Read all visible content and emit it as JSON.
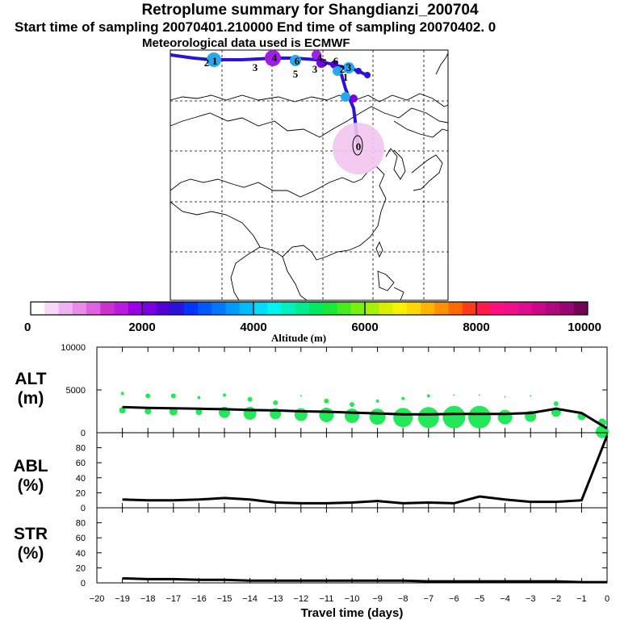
{
  "titles": {
    "main": "Retroplume summary for Shangdianzi_200704",
    "sampling": "Start time of sampling 20070401.210000     End time of sampling 20070402.     0",
    "met": "Meteorological data used is ECMWF"
  },
  "colorbar": {
    "tick_labels": [
      "0",
      "2000",
      "4000",
      "6000",
      "8000",
      "10000"
    ],
    "label": "Altitude (m)",
    "colors": [
      "#ffffff",
      "#f7d9f7",
      "#efb3ef",
      "#e88ce8",
      "#df62df",
      "#cc33cc",
      "#b91cdd",
      "#9b00e8",
      "#7a00e0",
      "#5200d4",
      "#2a14d8",
      "#0036ff",
      "#0058ff",
      "#0078ff",
      "#009bff",
      "#00bcff",
      "#00ddff",
      "#00f5f0",
      "#00f0c0",
      "#00ec90",
      "#00e860",
      "#18e838",
      "#48ec20",
      "#78f010",
      "#a8f000",
      "#d8f000",
      "#f8f000",
      "#ffd800",
      "#ffb400",
      "#ff9000",
      "#ff6a00",
      "#ff3a1a",
      "#ff1a4a",
      "#ff1080",
      "#f0108a",
      "#e00c90",
      "#c80a8a",
      "#b0087e",
      "#980672",
      "#700455"
    ]
  },
  "map": {
    "release_label": "0",
    "segment_labels": [
      "1",
      "2",
      "3",
      "4",
      "5",
      "6",
      "3",
      "4",
      "5",
      "6",
      "1",
      "2",
      "3"
    ]
  },
  "panels": {
    "alt": {
      "label_line1": "ALT",
      "label_line2": "(m)",
      "yticks": [
        "10000",
        "5000",
        "0"
      ]
    },
    "abl": {
      "label_line1": "ABL",
      "label_line2": "(%)",
      "yticks": [
        "80",
        "60",
        "40",
        "20",
        "0"
      ]
    },
    "str": {
      "label_line1": "STR",
      "label_line2": "(%)",
      "yticks": [
        "80",
        "60",
        "40",
        "20",
        "0"
      ]
    }
  },
  "xaxis": {
    "label": "Travel time (days)",
    "tick_labels": [
      "−20",
      "−19",
      "−18",
      "−17",
      "−16",
      "−15",
      "−14",
      "−13",
      "−12",
      "−11",
      "−10",
      "−9",
      "−8",
      "−7",
      "−6",
      "−5",
      "−4",
      "−3",
      "−2",
      "−1",
      "0"
    ]
  },
  "chart_data": [
    {
      "type": "line",
      "panel": "ALT",
      "title": "ALT (m)",
      "xlabel": "Travel time (days)",
      "ylabel": "Altitude (m)",
      "xlim": [
        -20,
        0
      ],
      "ylim": [
        0,
        10000
      ],
      "x": [
        -19,
        -18,
        -17,
        -16,
        -15,
        -14,
        -13,
        -12,
        -11,
        -10,
        -9,
        -8,
        -7,
        -6,
        -5,
        -4,
        -3,
        -2,
        -1,
        0
      ],
      "values": [
        3000,
        2900,
        2850,
        2800,
        2750,
        2650,
        2600,
        2500,
        2450,
        2350,
        2250,
        2150,
        2150,
        2200,
        2200,
        2200,
        2300,
        2800,
        2300,
        500
      ]
    },
    {
      "type": "line",
      "panel": "ABL",
      "title": "ABL (%)",
      "xlabel": "Travel time (days)",
      "ylabel": "ABL (%)",
      "xlim": [
        -20,
        0
      ],
      "ylim": [
        0,
        100
      ],
      "x": [
        -19,
        -18,
        -17,
        -16,
        -15,
        -14,
        -13,
        -12,
        -11,
        -10,
        -9,
        -8,
        -7,
        -6,
        -5,
        -4,
        -3,
        -2,
        -1,
        0
      ],
      "values": [
        11,
        10,
        10,
        11,
        13,
        11,
        7,
        6,
        6,
        7,
        9,
        6,
        7,
        6,
        15,
        11,
        8,
        8,
        10,
        96
      ]
    },
    {
      "type": "line",
      "panel": "STR",
      "title": "STR (%)",
      "xlabel": "Travel time (days)",
      "ylabel": "STR (%)",
      "xlim": [
        -20,
        0
      ],
      "ylim": [
        0,
        100
      ],
      "x": [
        -19,
        -18,
        -17,
        -16,
        -15,
        -14,
        -13,
        -12,
        -11,
        -10,
        -9,
        -8,
        -7,
        -6,
        -5,
        -4,
        -3,
        -2,
        -1,
        0
      ],
      "values": [
        6,
        5,
        5,
        4,
        4,
        3,
        3,
        3,
        3,
        3,
        3,
        3,
        2,
        2,
        2,
        2,
        2,
        2,
        1,
        1
      ]
    }
  ]
}
